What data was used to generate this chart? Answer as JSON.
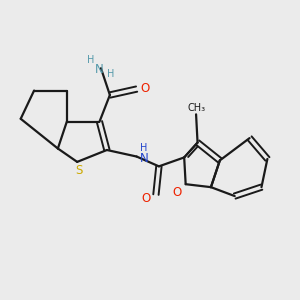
{
  "bg_color": "#ebebeb",
  "bond_color": "#1a1a1a",
  "S_color": "#ccaa00",
  "O_color": "#ee2200",
  "N_color": "#2244cc",
  "NH2_color": "#5599aa",
  "figsize": [
    3.0,
    3.0
  ],
  "dpi": 100,
  "xlim": [
    0,
    10
  ],
  "ylim": [
    0,
    10
  ]
}
